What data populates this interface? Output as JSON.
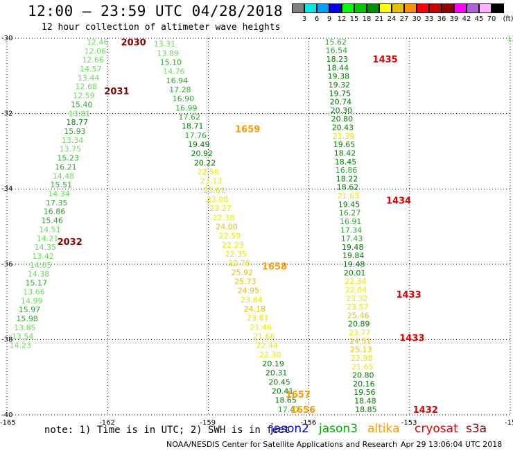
{
  "header": {
    "title": "12:00 – 23:59 UTC 04/28/2018",
    "subtitle": "12 hour collection of altimeter wave heights"
  },
  "colorbar": {
    "labels": [
      "3",
      "6",
      "9",
      "12",
      "15",
      "18",
      "21",
      "24",
      "27",
      "30",
      "33",
      "36",
      "39",
      "42",
      "45",
      "70"
    ],
    "unit": "(ft)",
    "colors": [
      "#808080",
      "#00e8e8",
      "#00a0ff",
      "#0000e8",
      "#00ff00",
      "#00c800",
      "#009000",
      "#ffff00",
      "#e8c000",
      "#ff9000",
      "#ff0000",
      "#c80000",
      "#900000",
      "#ff00ff",
      "#b060e0",
      "#ffb0ff",
      "#000000"
    ]
  },
  "note": "note: 1) Time is in UTC; 2) SWH is in feet",
  "legend": [
    {
      "label": "jason2",
      "color": "#0000dd"
    },
    {
      "label": "jason3",
      "color": "#00aa00"
    },
    {
      "label": "altika",
      "color": "#ff9900"
    },
    {
      "label": "cryosat",
      "color": "#dd0000"
    },
    {
      "label": "s3a",
      "color": "#880000"
    }
  ],
  "footer": {
    "left": "NOAA/NESDIS Center for Satellite Applications and Research",
    "right": "Apr 29 13:06:04 UTC 2018"
  },
  "chart_data": {
    "type": "scatter",
    "xlim": [
      -165,
      -150
    ],
    "ylim": [
      -40,
      -30
    ],
    "x_ticks": [
      "-165",
      "-162",
      "-159",
      "-156",
      "-153",
      "-150"
    ],
    "y_ticks": [
      "-30",
      "-32",
      "-34",
      "-36",
      "-38",
      "-40"
    ],
    "grid": true,
    "stray_label": "12",
    "tracks": [
      {
        "satellite": "s3a",
        "time_labels": [
          {
            "text": "2030",
            "x": -161.6,
            "y": -30.1
          },
          {
            "text": "2031",
            "x": -162.1,
            "y": -31.4
          },
          {
            "text": "2032",
            "x": -163.5,
            "y": -35.4
          }
        ],
        "values": [
          "12.46",
          "12.06",
          "12.66",
          "14.57",
          "13.44",
          "12.68",
          "12.59",
          "15.40",
          "13.81",
          "18.77",
          "15.93",
          "13.34",
          "13.75",
          "15.23",
          "16.21",
          "14.48",
          "15.51",
          "14.34",
          "17.35",
          "16.86",
          "15.46",
          "14.51",
          "14.21",
          "14.35",
          "13.42",
          "14.05",
          "14.38",
          "15.17",
          "13.66",
          "14.99",
          "15.97",
          "15.98",
          "13.85",
          "13.54",
          "14.23"
        ],
        "x_start": -162.3,
        "y_start": -30.1,
        "x_end": -164.6,
        "y_end": -38.15
      },
      {
        "satellite": "altika",
        "time_labels": [
          {
            "text": "1659",
            "x": -158.2,
            "y": -32.4
          },
          {
            "text": "1658",
            "x": -157.4,
            "y": -36.05
          },
          {
            "text": "1657",
            "x": -156.7,
            "y": -39.45
          },
          {
            "text": "1656",
            "x": -156.55,
            "y": -39.85
          }
        ],
        "values": [
          "13.31",
          "13.89",
          "15.10",
          "14.76",
          "16.94",
          "17.28",
          "16.90",
          "16.99",
          "17.62",
          "18.71",
          "17.76",
          "19.49",
          "20.92",
          "20.22",
          "22.56",
          "23.13",
          "23.61",
          "23.08",
          "23.27",
          "22.38",
          "24.00",
          "22.59",
          "22.23",
          "22.35",
          "22.78",
          "25.92",
          "25.73",
          "24.95",
          "23.84",
          "24.18",
          "23.81",
          "21.46",
          "21.66",
          "22.44",
          "22.30",
          "20.19",
          "20.31",
          "20.45",
          "20.41",
          "18.65",
          "17.47"
        ],
        "x_start": -160.3,
        "y_start": -30.15,
        "x_end": -156.6,
        "y_end": -39.85
      },
      {
        "satellite": "cryosat",
        "time_labels": [
          {
            "text": "1435",
            "x": -154.1,
            "y": -30.55
          },
          {
            "text": "1434",
            "x": -153.7,
            "y": -34.3
          },
          {
            "text": "1433",
            "x": -153.4,
            "y": -36.8
          },
          {
            "text": "1433",
            "x": -153.3,
            "y": -37.95
          },
          {
            "text": "1432",
            "x": -152.9,
            "y": -39.85
          }
        ],
        "values": [
          "15.62",
          "16.54",
          "18.23",
          "18.44",
          "19.38",
          "19.32",
          "19.75",
          "20.74",
          "20.30",
          "20.80",
          "20.43",
          "21.39",
          "19.65",
          "18.42",
          "18.45",
          "16.86",
          "18.22",
          "18.62",
          "21.63",
          "19.45",
          "16.27",
          "16.91",
          "17.34",
          "17.43",
          "19.48",
          "19.84",
          "19.48",
          "20.01",
          "22.34",
          "22.04",
          "23.32",
          "23.57",
          "25.46",
          "20.89",
          "23.77",
          "24.31",
          "25.13",
          "22.98",
          "21.65",
          "20.80",
          "20.16",
          "19.56",
          "18.48",
          "18.85"
        ],
        "x_start": -155.2,
        "y_start": -30.1,
        "x_end": -154.3,
        "y_end": -39.85
      }
    ]
  }
}
